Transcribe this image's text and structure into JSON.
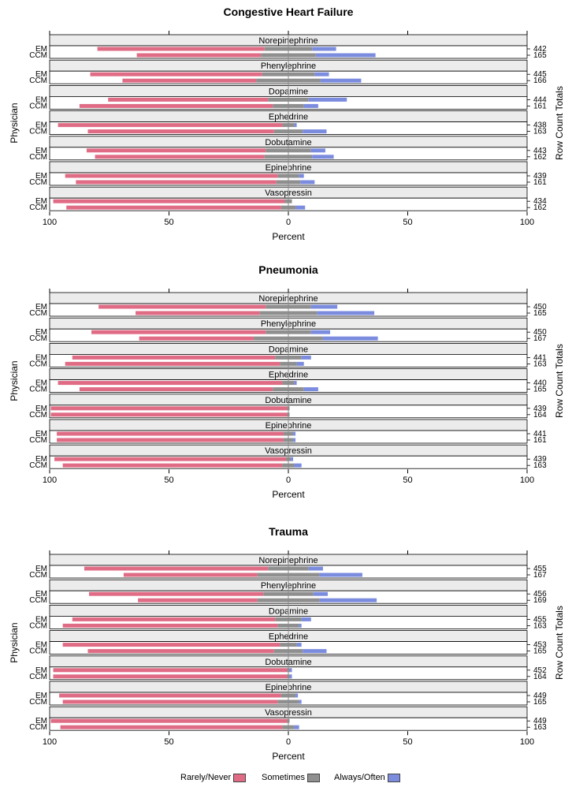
{
  "chart_data": [
    {
      "type": "bar",
      "title": "Congestive Heart Failure",
      "xlabel": "Percent",
      "ylabel": "Physician",
      "ylabel2": "Row Count Totals",
      "xlim": [
        -100,
        100
      ],
      "x_ticks": [
        "100",
        "50",
        "0",
        "50",
        "100"
      ],
      "panels": [
        {
          "label": "Norepinephrine",
          "rows": [
            {
              "physician": "EM",
              "rarely": 70,
              "sometimes": 20,
              "always": 10,
              "total": "442"
            },
            {
              "physician": "CCM",
              "rarely": 52,
              "sometimes": 23,
              "always": 25,
              "total": "165"
            }
          ]
        },
        {
          "label": "Phenylephrine",
          "rows": [
            {
              "physician": "EM",
              "rarely": 72,
              "sometimes": 22,
              "always": 6,
              "total": "445"
            },
            {
              "physician": "CCM",
              "rarely": 56,
              "sometimes": 27,
              "always": 17,
              "total": "166"
            }
          ]
        },
        {
          "label": "Dopamine",
          "rows": [
            {
              "physician": "EM",
              "rarely": 67,
              "sometimes": 17,
              "always": 16,
              "total": "444"
            },
            {
              "physician": "CCM",
              "rarely": 81,
              "sometimes": 13,
              "always": 6,
              "total": "161"
            }
          ]
        },
        {
          "label": "Ephedrine",
          "rows": [
            {
              "physician": "EM",
              "rarely": 94,
              "sometimes": 5,
              "always": 1,
              "total": "438"
            },
            {
              "physician": "CCM",
              "rarely": 78,
              "sometimes": 12,
              "always": 10,
              "total": "163"
            }
          ]
        },
        {
          "label": "Dobutamine",
          "rows": [
            {
              "physician": "EM",
              "rarely": 75,
              "sometimes": 19,
              "always": 6,
              "total": "443"
            },
            {
              "physician": "CCM",
              "rarely": 71,
              "sometimes": 20,
              "always": 9,
              "total": "162"
            }
          ]
        },
        {
          "label": "Epinephrine",
          "rows": [
            {
              "physician": "EM",
              "rarely": 89,
              "sometimes": 9,
              "always": 2,
              "total": "439"
            },
            {
              "physician": "CCM",
              "rarely": 84,
              "sometimes": 10,
              "always": 6,
              "total": "161"
            }
          ]
        },
        {
          "label": "Vasopressin",
          "rows": [
            {
              "physician": "EM",
              "rarely": 97,
              "sometimes": 3,
              "always": 0,
              "total": "434"
            },
            {
              "physician": "CCM",
              "rarely": 90,
              "sometimes": 6,
              "always": 4,
              "total": "162"
            }
          ]
        }
      ]
    },
    {
      "type": "bar",
      "title": "Pneumonia",
      "xlabel": "Percent",
      "ylabel": "Physician",
      "ylabel2": "Row Count Totals",
      "xlim": [
        -100,
        100
      ],
      "x_ticks": [
        "100",
        "50",
        "0",
        "50",
        "100"
      ],
      "panels": [
        {
          "label": "Norepinephrine",
          "rows": [
            {
              "physician": "EM",
              "rarely": 70,
              "sometimes": 19,
              "always": 11,
              "total": "450"
            },
            {
              "physician": "CCM",
              "rarely": 52,
              "sometimes": 24,
              "always": 24,
              "total": "165"
            }
          ]
        },
        {
          "label": "Phenylephrine",
          "rows": [
            {
              "physician": "EM",
              "rarely": 73,
              "sometimes": 19,
              "always": 8,
              "total": "450"
            },
            {
              "physician": "CCM",
              "rarely": 48,
              "sometimes": 29,
              "always": 23,
              "total": "167"
            }
          ]
        },
        {
          "label": "Dopamine",
          "rows": [
            {
              "physician": "EM",
              "rarely": 85,
              "sometimes": 11,
              "always": 4,
              "total": "441"
            },
            {
              "physician": "CCM",
              "rarely": 90,
              "sometimes": 7,
              "always": 3,
              "total": "163"
            }
          ]
        },
        {
          "label": "Ephedrine",
          "rows": [
            {
              "physician": "EM",
              "rarely": 94,
              "sometimes": 5,
              "always": 1,
              "total": "440"
            },
            {
              "physician": "CCM",
              "rarely": 81,
              "sometimes": 13,
              "always": 6,
              "total": "165"
            }
          ]
        },
        {
          "label": "Dobutamine",
          "rows": [
            {
              "physician": "EM",
              "rarely": 99,
              "sometimes": 1,
              "always": 0,
              "total": "439"
            },
            {
              "physician": "CCM",
              "rarely": 99,
              "sometimes": 1,
              "always": 0,
              "total": "164"
            }
          ]
        },
        {
          "label": "Epinephrine",
          "rows": [
            {
              "physician": "EM",
              "rarely": 95,
              "sometimes": 4,
              "always": 1,
              "total": "441"
            },
            {
              "physician": "CCM",
              "rarely": 95,
              "sometimes": 4,
              "always": 1,
              "total": "161"
            }
          ]
        },
        {
          "label": "Vasopressin",
          "rows": [
            {
              "physician": "EM",
              "rarely": 97,
              "sometimes": 2,
              "always": 1,
              "total": "439"
            },
            {
              "physician": "CCM",
              "rarely": 92,
              "sometimes": 5,
              "always": 3,
              "total": "163"
            }
          ]
        }
      ]
    },
    {
      "type": "bar",
      "title": "Trauma",
      "xlabel": "Percent",
      "ylabel": "Physician",
      "ylabel2": "Row Count Totals",
      "xlim": [
        -100,
        100
      ],
      "x_ticks": [
        "100",
        "50",
        "0",
        "50",
        "100"
      ],
      "panels": [
        {
          "label": "Norepinephrine",
          "rows": [
            {
              "physician": "EM",
              "rarely": 77,
              "sometimes": 17,
              "always": 6,
              "total": "455"
            },
            {
              "physician": "CCM",
              "rarely": 56,
              "sometimes": 26,
              "always": 18,
              "total": "167"
            }
          ]
        },
        {
          "label": "Phenylephrine",
          "rows": [
            {
              "physician": "EM",
              "rarely": 73,
              "sometimes": 21,
              "always": 6,
              "total": "456"
            },
            {
              "physician": "CCM",
              "rarely": 50,
              "sometimes": 26,
              "always": 24,
              "total": "169"
            }
          ]
        },
        {
          "label": "Dopamine",
          "rows": [
            {
              "physician": "EM",
              "rarely": 85,
              "sometimes": 11,
              "always": 4,
              "total": "455"
            },
            {
              "physician": "CCM",
              "rarely": 90,
              "sometimes": 9,
              "always": 1,
              "total": "163"
            }
          ]
        },
        {
          "label": "Ephedrine",
          "rows": [
            {
              "physician": "EM",
              "rarely": 91,
              "sometimes": 7,
              "always": 2,
              "total": "453"
            },
            {
              "physician": "CCM",
              "rarely": 78,
              "sometimes": 12,
              "always": 10,
              "total": "165"
            }
          ]
        },
        {
          "label": "Dobutamine",
          "rows": [
            {
              "physician": "EM",
              "rarely": 98,
              "sometimes": 1,
              "always": 1,
              "total": "452"
            },
            {
              "physician": "CCM",
              "rarely": 98,
              "sometimes": 1,
              "always": 1,
              "total": "164"
            }
          ]
        },
        {
          "label": "Epinephrine",
          "rows": [
            {
              "physician": "EM",
              "rarely": 93,
              "sometimes": 6,
              "always": 1,
              "total": "449"
            },
            {
              "physician": "CCM",
              "rarely": 90,
              "sometimes": 9,
              "always": 1,
              "total": "165"
            }
          ]
        },
        {
          "label": "Vasopressin",
          "rows": [
            {
              "physician": "EM",
              "rarely": 99,
              "sometimes": 1,
              "always": 0,
              "total": "449"
            },
            {
              "physician": "CCM",
              "rarely": 93,
              "sometimes": 5,
              "always": 2,
              "total": "163"
            }
          ]
        }
      ]
    }
  ],
  "legend": {
    "items": [
      {
        "label": "Rarely/Never",
        "color": "#e06b85"
      },
      {
        "label": "Sometimes",
        "color": "#8f8f8f"
      },
      {
        "label": "Always/Often",
        "color": "#7b8cdf"
      }
    ]
  }
}
